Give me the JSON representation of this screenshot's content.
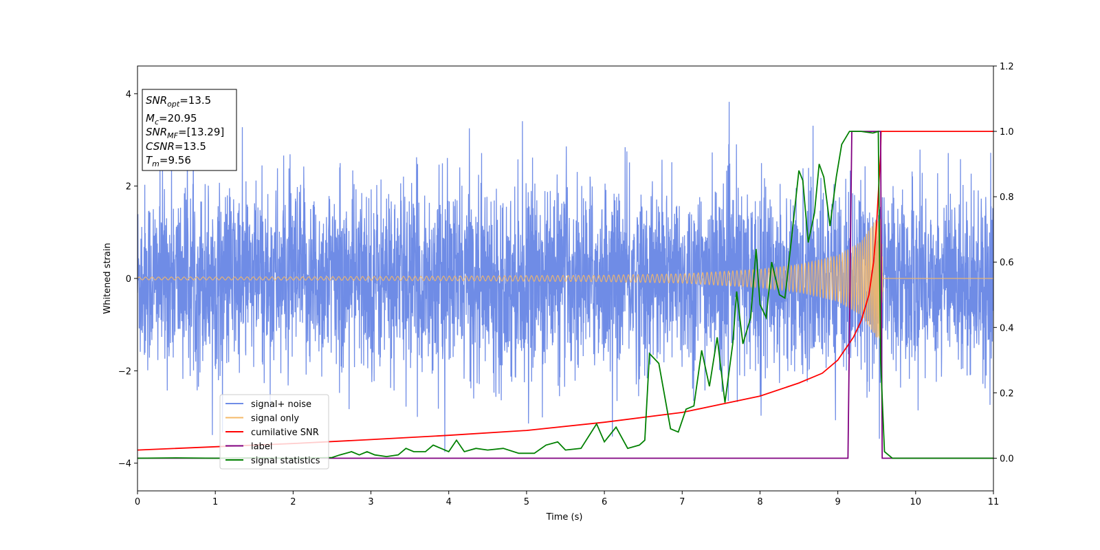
{
  "chart_data": {
    "type": "line",
    "title": "",
    "xlabel": "Time (s)",
    "ylabel": "Whitened strain",
    "xlim": [
      0,
      11
    ],
    "ylim": [
      -4.6,
      4.6
    ],
    "ylim_right": [
      -0.1,
      1.2
    ],
    "x_ticks": [
      "0",
      "1",
      "2",
      "3",
      "4",
      "5",
      "6",
      "7",
      "8",
      "9",
      "10",
      "11"
    ],
    "y_ticks": [
      "−4",
      "−2",
      "0",
      "2",
      "4"
    ],
    "y_ticks_right": [
      "0.0",
      "0.2",
      "0.4",
      "0.6",
      "0.8",
      "1.0",
      "1.2"
    ],
    "grid": false,
    "legend_position": "lower-left",
    "colors": {
      "signal_noise": "#6f8ce6",
      "signal_only": "#f5b867",
      "cumulative_snr": "#ff0000",
      "label": "#800080",
      "signal_statistics": "#008000"
    },
    "stats_box": {
      "snr_opt": "13.5",
      "mc": "20.95",
      "snr_mf": "[13.29]",
      "csnr": "13.5",
      "tm": "9.56"
    },
    "series": [
      {
        "name": "signal+ noise",
        "axis": "left",
        "style": "whitened gaussian noise, std ≈ 1.0, peaks ≈ ±4.1",
        "noise_std": 1.0,
        "noise_peak": 4.1
      },
      {
        "name": "signal only",
        "axis": "left",
        "style": "chirp, amplitude rising to ≈1.3 at merger t≈9.56 s, then ringdown to 0",
        "amplitude_envelope": [
          {
            "x": 0,
            "y": 0.03
          },
          {
            "x": 2,
            "y": 0.035
          },
          {
            "x": 4,
            "y": 0.05
          },
          {
            "x": 6,
            "y": 0.07
          },
          {
            "x": 7,
            "y": 0.1
          },
          {
            "x": 8,
            "y": 0.2
          },
          {
            "x": 8.5,
            "y": 0.3
          },
          {
            "x": 9,
            "y": 0.5
          },
          {
            "x": 9.3,
            "y": 0.8
          },
          {
            "x": 9.5,
            "y": 1.3
          },
          {
            "x": 9.56,
            "y": 1.3
          },
          {
            "x": 9.58,
            "y": 0
          }
        ]
      },
      {
        "name": "cumilative SNR",
        "axis": "right",
        "points": [
          {
            "x": 0,
            "y": 0.025
          },
          {
            "x": 1,
            "y": 0.035
          },
          {
            "x": 2,
            "y": 0.045
          },
          {
            "x": 3,
            "y": 0.057
          },
          {
            "x": 4,
            "y": 0.07
          },
          {
            "x": 5,
            "y": 0.085
          },
          {
            "x": 6,
            "y": 0.11
          },
          {
            "x": 7,
            "y": 0.14
          },
          {
            "x": 7.5,
            "y": 0.165
          },
          {
            "x": 8,
            "y": 0.19
          },
          {
            "x": 8.5,
            "y": 0.23
          },
          {
            "x": 8.8,
            "y": 0.26
          },
          {
            "x": 9,
            "y": 0.3
          },
          {
            "x": 9.2,
            "y": 0.37
          },
          {
            "x": 9.3,
            "y": 0.42
          },
          {
            "x": 9.4,
            "y": 0.5
          },
          {
            "x": 9.46,
            "y": 0.6
          },
          {
            "x": 9.5,
            "y": 0.72
          },
          {
            "x": 9.53,
            "y": 0.85
          },
          {
            "x": 9.55,
            "y": 0.93
          },
          {
            "x": 9.555,
            "y": 1.0
          },
          {
            "x": 11,
            "y": 1.0
          }
        ]
      },
      {
        "name": "label",
        "axis": "right",
        "points": [
          {
            "x": 0,
            "y": 0
          },
          {
            "x": 9.13,
            "y": 0
          },
          {
            "x": 9.18,
            "y": 1.0
          },
          {
            "x": 9.55,
            "y": 1.0
          },
          {
            "x": 9.57,
            "y": 0
          },
          {
            "x": 11,
            "y": 0
          }
        ]
      },
      {
        "name": "signal statistics",
        "axis": "right",
        "points": [
          {
            "x": 0,
            "y": 0
          },
          {
            "x": 0.5,
            "y": 0.001
          },
          {
            "x": 1,
            "y": 0
          },
          {
            "x": 1.5,
            "y": 0.001
          },
          {
            "x": 2,
            "y": 0
          },
          {
            "x": 2.5,
            "y": 0.002
          },
          {
            "x": 2.6,
            "y": 0.01
          },
          {
            "x": 2.75,
            "y": 0.02
          },
          {
            "x": 2.85,
            "y": 0.01
          },
          {
            "x": 2.95,
            "y": 0.02
          },
          {
            "x": 3.05,
            "y": 0.01
          },
          {
            "x": 3.2,
            "y": 0.005
          },
          {
            "x": 3.35,
            "y": 0.01
          },
          {
            "x": 3.45,
            "y": 0.03
          },
          {
            "x": 3.55,
            "y": 0.02
          },
          {
            "x": 3.7,
            "y": 0.02
          },
          {
            "x": 3.8,
            "y": 0.04
          },
          {
            "x": 3.9,
            "y": 0.03
          },
          {
            "x": 4.0,
            "y": 0.02
          },
          {
            "x": 4.1,
            "y": 0.055
          },
          {
            "x": 4.2,
            "y": 0.02
          },
          {
            "x": 4.35,
            "y": 0.03
          },
          {
            "x": 4.5,
            "y": 0.025
          },
          {
            "x": 4.7,
            "y": 0.03
          },
          {
            "x": 4.9,
            "y": 0.015
          },
          {
            "x": 5.1,
            "y": 0.015
          },
          {
            "x": 5.25,
            "y": 0.04
          },
          {
            "x": 5.4,
            "y": 0.05
          },
          {
            "x": 5.5,
            "y": 0.025
          },
          {
            "x": 5.7,
            "y": 0.03
          },
          {
            "x": 5.9,
            "y": 0.105
          },
          {
            "x": 6.0,
            "y": 0.05
          },
          {
            "x": 6.15,
            "y": 0.095
          },
          {
            "x": 6.3,
            "y": 0.03
          },
          {
            "x": 6.45,
            "y": 0.04
          },
          {
            "x": 6.52,
            "y": 0.055
          },
          {
            "x": 6.58,
            "y": 0.32
          },
          {
            "x": 6.7,
            "y": 0.29
          },
          {
            "x": 6.85,
            "y": 0.09
          },
          {
            "x": 6.95,
            "y": 0.08
          },
          {
            "x": 7.05,
            "y": 0.15
          },
          {
            "x": 7.15,
            "y": 0.16
          },
          {
            "x": 7.25,
            "y": 0.33
          },
          {
            "x": 7.35,
            "y": 0.22
          },
          {
            "x": 7.45,
            "y": 0.37
          },
          {
            "x": 7.55,
            "y": 0.17
          },
          {
            "x": 7.65,
            "y": 0.35
          },
          {
            "x": 7.7,
            "y": 0.51
          },
          {
            "x": 7.78,
            "y": 0.35
          },
          {
            "x": 7.88,
            "y": 0.43
          },
          {
            "x": 7.95,
            "y": 0.64
          },
          {
            "x": 8.0,
            "y": 0.47
          },
          {
            "x": 8.08,
            "y": 0.43
          },
          {
            "x": 8.15,
            "y": 0.6
          },
          {
            "x": 8.25,
            "y": 0.5
          },
          {
            "x": 8.32,
            "y": 0.49
          },
          {
            "x": 8.4,
            "y": 0.66
          },
          {
            "x": 8.5,
            "y": 0.88
          },
          {
            "x": 8.55,
            "y": 0.85
          },
          {
            "x": 8.62,
            "y": 0.66
          },
          {
            "x": 8.7,
            "y": 0.75
          },
          {
            "x": 8.76,
            "y": 0.9
          },
          {
            "x": 8.82,
            "y": 0.86
          },
          {
            "x": 8.9,
            "y": 0.71
          },
          {
            "x": 8.98,
            "y": 0.86
          },
          {
            "x": 9.05,
            "y": 0.96
          },
          {
            "x": 9.15,
            "y": 1.0
          },
          {
            "x": 9.3,
            "y": 1.0
          },
          {
            "x": 9.45,
            "y": 0.995
          },
          {
            "x": 9.52,
            "y": 1.0
          },
          {
            "x": 9.55,
            "y": 0.3
          },
          {
            "x": 9.6,
            "y": 0.02
          },
          {
            "x": 9.7,
            "y": 0
          },
          {
            "x": 11,
            "y": 0
          }
        ]
      }
    ]
  },
  "legend": [
    {
      "label": "signal+ noise",
      "color": "#6f8ce6"
    },
    {
      "label": "signal only",
      "color": "#f5b867"
    },
    {
      "label": "cumilative SNR",
      "color": "#ff0000"
    },
    {
      "label": "label",
      "color": "#800080"
    },
    {
      "label": "signal statistics",
      "color": "#008000"
    }
  ]
}
